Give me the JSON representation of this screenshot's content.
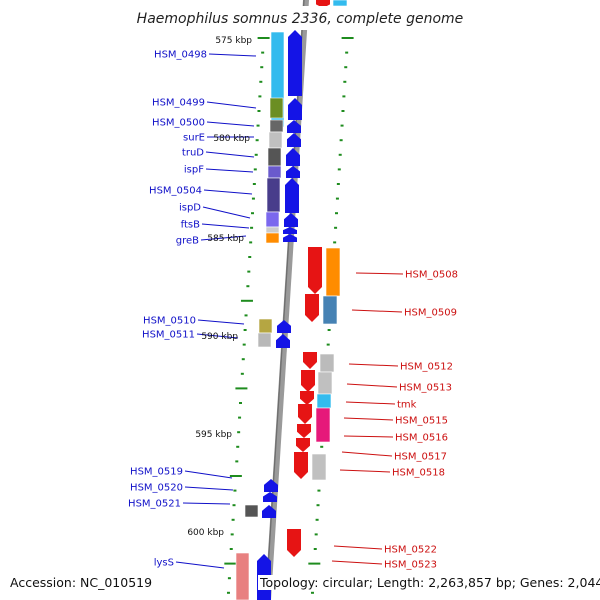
{
  "title": "Haemophilus somnus 2336, complete genome",
  "accession": "Accession: NC_010519",
  "topology": "Topology: circular; Length: 2,263,857 bp; Genes: 2,044",
  "colors": {
    "forward": "#1414e6",
    "reverse": "#e61414",
    "tick": "#1e8c1e",
    "axis": "#8a8a8a",
    "label_left": "#1010c8",
    "label_right": "#cc1010"
  },
  "kbp_labels": [
    "575 kbp",
    "580 kbp",
    "585 kbp",
    "590 kbp",
    "595 kbp",
    "600 kbp"
  ],
  "genes_left": [
    {
      "label": "HSM_0498"
    },
    {
      "label": "HSM_0499"
    },
    {
      "label": "HSM_0500"
    },
    {
      "label": "surE"
    },
    {
      "label": "truD"
    },
    {
      "label": "ispF"
    },
    {
      "label": "HSM_0504"
    },
    {
      "label": "ispD"
    },
    {
      "label": "ftsB"
    },
    {
      "label": "greB"
    },
    {
      "label": "HSM_0510"
    },
    {
      "label": "HSM_0511"
    },
    {
      "label": "HSM_0519"
    },
    {
      "label": "HSM_0520"
    },
    {
      "label": "HSM_0521"
    },
    {
      "label": "lysS"
    }
  ],
  "genes_right": [
    {
      "label": "HSM_0508"
    },
    {
      "label": "HSM_0509"
    },
    {
      "label": "HSM_0512"
    },
    {
      "label": "HSM_0513"
    },
    {
      "label": "tmk"
    },
    {
      "label": "HSM_0515"
    },
    {
      "label": "HSM_0516"
    },
    {
      "label": "HSM_0517"
    },
    {
      "label": "HSM_0518"
    },
    {
      "label": "HSM_0522"
    },
    {
      "label": "HSM_0523"
    }
  ]
}
